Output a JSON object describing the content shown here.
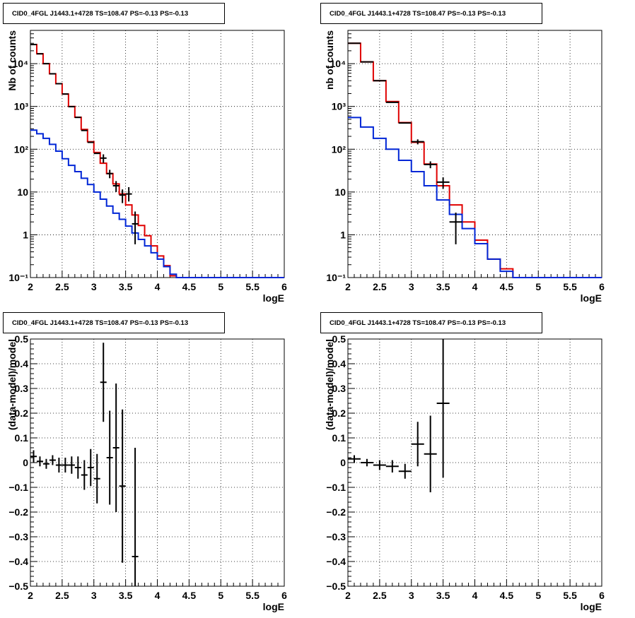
{
  "colors": {
    "model": "#e00000",
    "component": "#0026d6",
    "data": "#000000"
  },
  "panels": [
    {
      "title": "CID0_4FGL J1443.1+4728 TS=108.47 PS=-0.13 PS=-0.13",
      "chart_data": {
        "type": "line",
        "scale": "log",
        "xlabel": "logE",
        "ylabel": "Nb of counts",
        "xlim": [
          2,
          6
        ],
        "ylim": [
          0.1,
          60000
        ],
        "xticks": [
          "2",
          "2.5",
          "3",
          "3.5",
          "4",
          "4.5",
          "5",
          "5.5",
          "6"
        ],
        "yticks": [
          {
            "v": 0.1,
            "label": "10⁻¹"
          },
          {
            "v": 1,
            "label": "1"
          },
          {
            "v": 10,
            "label": "10"
          },
          {
            "v": 100,
            "label": "10²"
          },
          {
            "v": 1000,
            "label": "10³"
          },
          {
            "v": 10000,
            "label": "10⁴"
          }
        ],
        "grid": true,
        "bin_edges": [
          2.0,
          2.1,
          2.2,
          2.3,
          2.4,
          2.5,
          2.6,
          2.7,
          2.8,
          2.9,
          3.0,
          3.1,
          3.2,
          3.3,
          3.4,
          3.5,
          3.6,
          3.7,
          3.8,
          3.9,
          4.0,
          4.1,
          4.2,
          4.3,
          4.4,
          4.5,
          4.6,
          4.7,
          4.8,
          4.9,
          5.0,
          5.1,
          5.2,
          5.3,
          5.4,
          5.5,
          5.6,
          5.7,
          5.8,
          5.9,
          6.0
        ],
        "series": [
          {
            "role": "model",
            "values": [
              28000,
              17000,
              10000,
              5800,
              3400,
              1950,
              1000,
              560,
              290,
              150,
              84,
              47,
              27,
              15.5,
              9,
              5,
              2.9,
              1.65,
              0.95,
              0.55,
              0.32,
              0.19,
              0.11,
              0.1,
              0.1,
              0.1,
              0.1,
              0.1,
              0.1,
              0.1,
              0.1,
              0.1,
              0.1,
              0.1,
              0.1,
              0.1,
              0.1,
              0.1,
              0.1,
              0.1
            ]
          },
          {
            "role": "component",
            "values": [
              280,
              230,
              180,
              130,
              90,
              60,
              42,
              30,
              21,
              15,
              10,
              6.8,
              4.7,
              3.2,
              2.3,
              1.6,
              1.1,
              0.78,
              0.55,
              0.38,
              0.27,
              0.18,
              0.12,
              0.1,
              0.1,
              0.1,
              0.1,
              0.1,
              0.1,
              0.1,
              0.1,
              0.1,
              0.1,
              0.1,
              0.1,
              0.1,
              0.1,
              0.1,
              0.1,
              0.1
            ]
          }
        ],
        "points": [
          {
            "x": 2.05,
            "y": 28000
          },
          {
            "x": 2.15,
            "y": 17000
          },
          {
            "x": 2.25,
            "y": 10000
          },
          {
            "x": 2.35,
            "y": 5800
          },
          {
            "x": 2.45,
            "y": 3400
          },
          {
            "x": 2.55,
            "y": 1950
          },
          {
            "x": 2.65,
            "y": 990
          },
          {
            "x": 2.75,
            "y": 555
          },
          {
            "x": 2.85,
            "y": 275
          },
          {
            "x": 2.95,
            "y": 145
          },
          {
            "x": 3.05,
            "y": 80
          },
          {
            "x": 3.15,
            "y": 62,
            "lo": 48,
            "hi": 76
          },
          {
            "x": 3.25,
            "y": 27,
            "lo": 21,
            "hi": 33
          },
          {
            "x": 3.35,
            "y": 14,
            "lo": 10,
            "hi": 18
          },
          {
            "x": 3.45,
            "y": 8.5,
            "lo": 5.5,
            "hi": 11.5
          },
          {
            "x": 3.55,
            "y": 9,
            "lo": 6,
            "hi": 13
          },
          {
            "x": 3.65,
            "y": 1.8,
            "lo": 0.6,
            "hi": 3.5
          }
        ]
      }
    },
    {
      "title": "CID0_4FGL J1443.1+4728 TS=108.47 PS=-0.13 PS=-0.13",
      "chart_data": {
        "type": "line",
        "scale": "log",
        "xlabel": "logE",
        "ylabel": "nb of counts",
        "xlim": [
          2,
          6
        ],
        "ylim": [
          0.1,
          60000
        ],
        "xticks": [
          "2",
          "2.5",
          "3",
          "3.5",
          "4",
          "4.5",
          "5",
          "5.5",
          "6"
        ],
        "yticks": [
          {
            "v": 0.1,
            "label": "10⁻¹"
          },
          {
            "v": 1,
            "label": "1"
          },
          {
            "v": 10,
            "label": "10"
          },
          {
            "v": 100,
            "label": "10²"
          },
          {
            "v": 1000,
            "label": "10³"
          },
          {
            "v": 10000,
            "label": "10⁴"
          }
        ],
        "grid": true,
        "bin_edges": [
          2.0,
          2.2,
          2.4,
          2.6,
          2.8,
          3.0,
          3.2,
          3.4,
          3.6,
          3.8,
          4.0,
          4.2,
          4.4,
          4.6,
          4.8,
          5.0,
          5.2,
          5.4,
          5.6,
          5.8,
          6.0
        ],
        "series": [
          {
            "role": "model",
            "values": [
              30000,
              11000,
              4000,
              1300,
              420,
              145,
              45,
              14,
              5,
              2,
              0.75,
              0.27,
              0.16,
              0.1,
              0.1,
              0.1,
              0.1,
              0.1,
              0.1,
              0.1
            ]
          },
          {
            "role": "component",
            "values": [
              550,
              330,
              180,
              100,
              55,
              30,
              14,
              6.5,
              3,
              1.4,
              0.62,
              0.27,
              0.14,
              0.1,
              0.1,
              0.1,
              0.1,
              0.1,
              0.1,
              0.1
            ]
          }
        ],
        "points": [
          {
            "x": 2.1,
            "y": 30000
          },
          {
            "x": 2.3,
            "y": 11000
          },
          {
            "x": 2.5,
            "y": 4000
          },
          {
            "x": 2.7,
            "y": 1250
          },
          {
            "x": 2.9,
            "y": 410
          },
          {
            "x": 3.1,
            "y": 150,
            "lo": 130,
            "hi": 170
          },
          {
            "x": 3.3,
            "y": 44,
            "lo": 36,
            "hi": 52
          },
          {
            "x": 3.5,
            "y": 17,
            "lo": 12,
            "hi": 22
          },
          {
            "x": 3.7,
            "y": 2,
            "lo": 0.6,
            "hi": 3.3
          }
        ]
      }
    },
    {
      "title": "CID0_4FGL J1443.1+4728 TS=108.47 PS=-0.13 PS=-0.13",
      "chart_data": {
        "type": "scatter",
        "scale": "linear",
        "xlabel": "logE",
        "ylabel": "(data-model)/model",
        "xlim": [
          2,
          6
        ],
        "ylim": [
          -0.5,
          0.5
        ],
        "xticks": [
          "2",
          "2.5",
          "3",
          "3.5",
          "4",
          "4.5",
          "5",
          "5.5",
          "6"
        ],
        "yticks": [
          {
            "v": -0.5,
            "label": "−0.5"
          },
          {
            "v": -0.4,
            "label": "−0.4"
          },
          {
            "v": -0.3,
            "label": "−0.3"
          },
          {
            "v": -0.2,
            "label": "−0.2"
          },
          {
            "v": -0.1,
            "label": "−0.1"
          },
          {
            "v": 0,
            "label": "0"
          },
          {
            "v": 0.1,
            "label": "0.1"
          },
          {
            "v": 0.2,
            "label": "0.2"
          },
          {
            "v": 0.3,
            "label": "0.3"
          },
          {
            "v": 0.4,
            "label": "0.4"
          },
          {
            "v": 0.5,
            "label": "0.5"
          }
        ],
        "grid": true,
        "points": [
          {
            "x": 2.05,
            "y": 0.025,
            "err": 0.025
          },
          {
            "x": 2.15,
            "y": 0.005,
            "err": 0.02
          },
          {
            "x": 2.25,
            "y": -0.005,
            "err": 0.02
          },
          {
            "x": 2.35,
            "y": 0.01,
            "err": 0.02
          },
          {
            "x": 2.45,
            "y": -0.01,
            "err": 0.03
          },
          {
            "x": 2.55,
            "y": -0.01,
            "err": 0.03
          },
          {
            "x": 2.65,
            "y": -0.01,
            "err": 0.035
          },
          {
            "x": 2.75,
            "y": -0.02,
            "err": 0.045
          },
          {
            "x": 2.85,
            "y": -0.05,
            "err": 0.06
          },
          {
            "x": 2.95,
            "y": -0.02,
            "err": 0.075
          },
          {
            "x": 3.05,
            "y": -0.065,
            "err": 0.1
          },
          {
            "x": 3.15,
            "y": 0.325,
            "err": 0.16
          },
          {
            "x": 3.25,
            "y": 0.02,
            "err": 0.19
          },
          {
            "x": 3.35,
            "y": 0.06,
            "err": 0.26
          },
          {
            "x": 3.45,
            "y": -0.095,
            "err": 0.31
          },
          {
            "x": 3.65,
            "y": -0.38,
            "err": 0.44
          }
        ]
      }
    },
    {
      "title": "CID0_4FGL J1443.1+4728 TS=108.47 PS=-0.13 PS=-0.13",
      "chart_data": {
        "type": "scatter",
        "scale": "linear",
        "xlabel": "logE",
        "ylabel": "(data-model)/model",
        "xlim": [
          2,
          6
        ],
        "ylim": [
          -0.5,
          0.5
        ],
        "xticks": [
          "2",
          "2.5",
          "3",
          "3.5",
          "4",
          "4.5",
          "5",
          "5.5",
          "6"
        ],
        "yticks": [
          {
            "v": -0.5,
            "label": "−0.5"
          },
          {
            "v": -0.4,
            "label": "−0.4"
          },
          {
            "v": -0.3,
            "label": "−0.3"
          },
          {
            "v": -0.2,
            "label": "−0.2"
          },
          {
            "v": -0.1,
            "label": "−0.1"
          },
          {
            "v": 0,
            "label": "0"
          },
          {
            "v": 0.1,
            "label": "0.1"
          },
          {
            "v": 0.2,
            "label": "0.2"
          },
          {
            "v": 0.3,
            "label": "0.3"
          },
          {
            "v": 0.4,
            "label": "0.4"
          },
          {
            "v": 0.5,
            "label": "0.5"
          }
        ],
        "grid": true,
        "points": [
          {
            "x": 2.1,
            "y": 0.015,
            "err": 0.015
          },
          {
            "x": 2.3,
            "y": 0.0,
            "err": 0.015
          },
          {
            "x": 2.5,
            "y": -0.01,
            "err": 0.02
          },
          {
            "x": 2.7,
            "y": -0.015,
            "err": 0.025
          },
          {
            "x": 2.9,
            "y": -0.035,
            "err": 0.03
          },
          {
            "x": 3.1,
            "y": 0.075,
            "err": 0.09
          },
          {
            "x": 3.3,
            "y": 0.035,
            "err": 0.155
          },
          {
            "x": 3.5,
            "y": 0.24,
            "err": 0.3
          }
        ]
      }
    }
  ]
}
